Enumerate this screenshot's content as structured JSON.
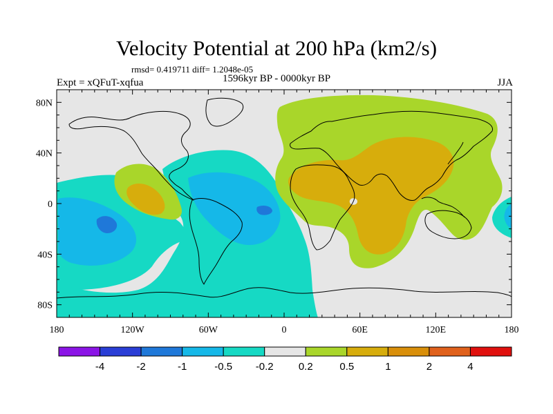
{
  "title": "Velocity Potential at 200 hPa (km2/s)",
  "stats": "rmsd= 0.419711 diff= 1.2048e-05",
  "expt": "Expt = xQFuT-xqfua",
  "period": "1596kyr BP - 0000kyr BP",
  "season": "JJA",
  "map": {
    "projection": "cylindrical-equidistant",
    "lon_range": [
      -180,
      180
    ],
    "lat_range": [
      -90,
      90
    ],
    "x_ticks": [
      {
        "lon": -180,
        "label": "180"
      },
      {
        "lon": -120,
        "label": "120W"
      },
      {
        "lon": -60,
        "label": "60W"
      },
      {
        "lon": 0,
        "label": "0"
      },
      {
        "lon": 60,
        "label": "60E"
      },
      {
        "lon": 120,
        "label": "120E"
      },
      {
        "lon": 180,
        "label": "180"
      }
    ],
    "y_ticks": [
      {
        "lat": 80,
        "label": "80N"
      },
      {
        "lat": 40,
        "label": "40N"
      },
      {
        "lat": 0,
        "label": "0"
      },
      {
        "lat": -40,
        "label": "40S"
      },
      {
        "lat": -80,
        "label": "80S"
      }
    ],
    "background_color": "#e6e6e6"
  },
  "colorbar": {
    "colors": [
      "#8b14e6",
      "#2a3ed6",
      "#1f78d9",
      "#15b8e8",
      "#16d9c4",
      "#e6e6e6",
      "#a9d62a",
      "#d7ad0c",
      "#d98f0a",
      "#e0611c",
      "#e0100e"
    ],
    "labels": [
      "-4",
      "-2",
      "-1",
      "-0.5",
      "-0.2",
      "0.2",
      "0.5",
      "1",
      "2",
      "4"
    ]
  }
}
